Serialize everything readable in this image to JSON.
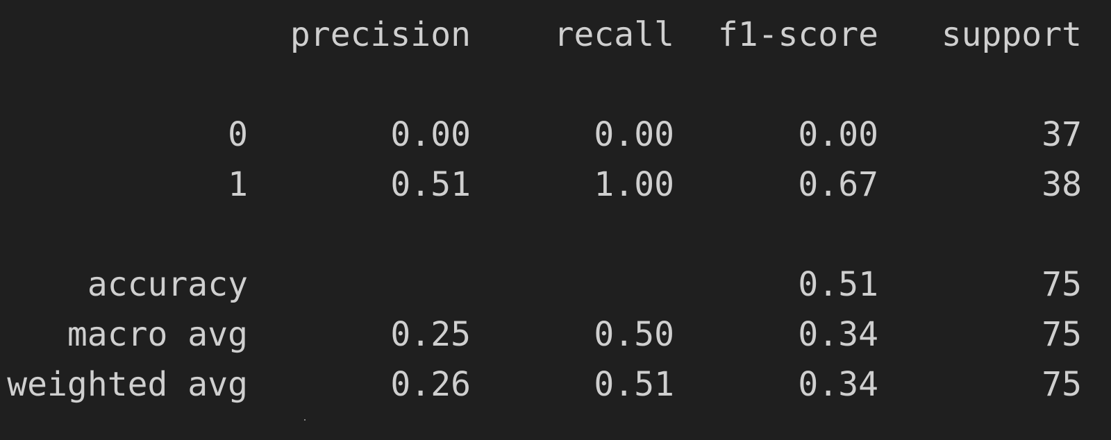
{
  "report": {
    "headers": {
      "precision": "precision",
      "recall": "recall",
      "f1": "f1-score",
      "support": "support"
    },
    "rows": [
      {
        "label": "0",
        "precision": "0.00",
        "recall": "0.00",
        "f1": "0.00",
        "support": "37"
      },
      {
        "label": "1",
        "precision": "0.51",
        "recall": "1.00",
        "f1": "0.67",
        "support": "38"
      },
      {
        "label": "accuracy",
        "precision": "",
        "recall": "",
        "f1": "0.51",
        "support": "75"
      },
      {
        "label": "macro avg",
        "precision": "0.25",
        "recall": "0.50",
        "f1": "0.34",
        "support": "75"
      },
      {
        "label": "weighted avg",
        "precision": "0.26",
        "recall": "0.51",
        "f1": "0.34",
        "support": "75"
      }
    ]
  }
}
